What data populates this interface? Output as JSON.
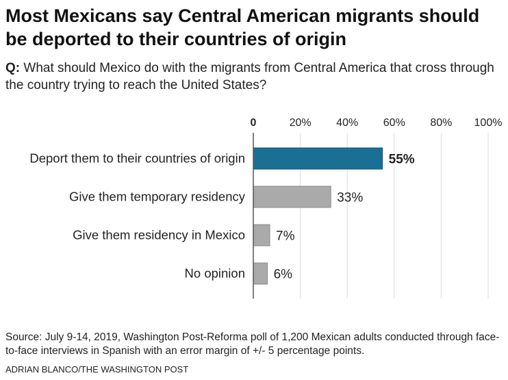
{
  "title": "Most Mexicans say Central American migrants should be deported to their countries of origin",
  "question": {
    "prefix": "Q:",
    "text": "What should Mexico do with the migrants from Central America that cross through the country trying to reach the United States?"
  },
  "chart_data": {
    "type": "bar",
    "orientation": "horizontal",
    "categories": [
      "Deport them to their countries of origin",
      "Give them temporary residency",
      "Give them residency in Mexico",
      "No opinion"
    ],
    "values": [
      55,
      33,
      7,
      6
    ],
    "value_labels": [
      "55%",
      "33%",
      "7%",
      "6%"
    ],
    "ticks": [
      0,
      20,
      40,
      60,
      80,
      100
    ],
    "tick_labels": [
      "0",
      "20%",
      "40%",
      "60%",
      "80%",
      "100%"
    ],
    "xlim": [
      0,
      100
    ],
    "axis_position": "top",
    "grid": true,
    "highlight_color": "#1a6f95",
    "bar_color": "#aaaaaa"
  },
  "source": "Source: July 9-14, 2019, Washington Post-Reforma poll of 1,200 Mexican adults conducted through face-to-face interviews in Spanish with an error margin of +/- 5 percentage points.",
  "credit": "Adrian Blanco/The Washington Post"
}
